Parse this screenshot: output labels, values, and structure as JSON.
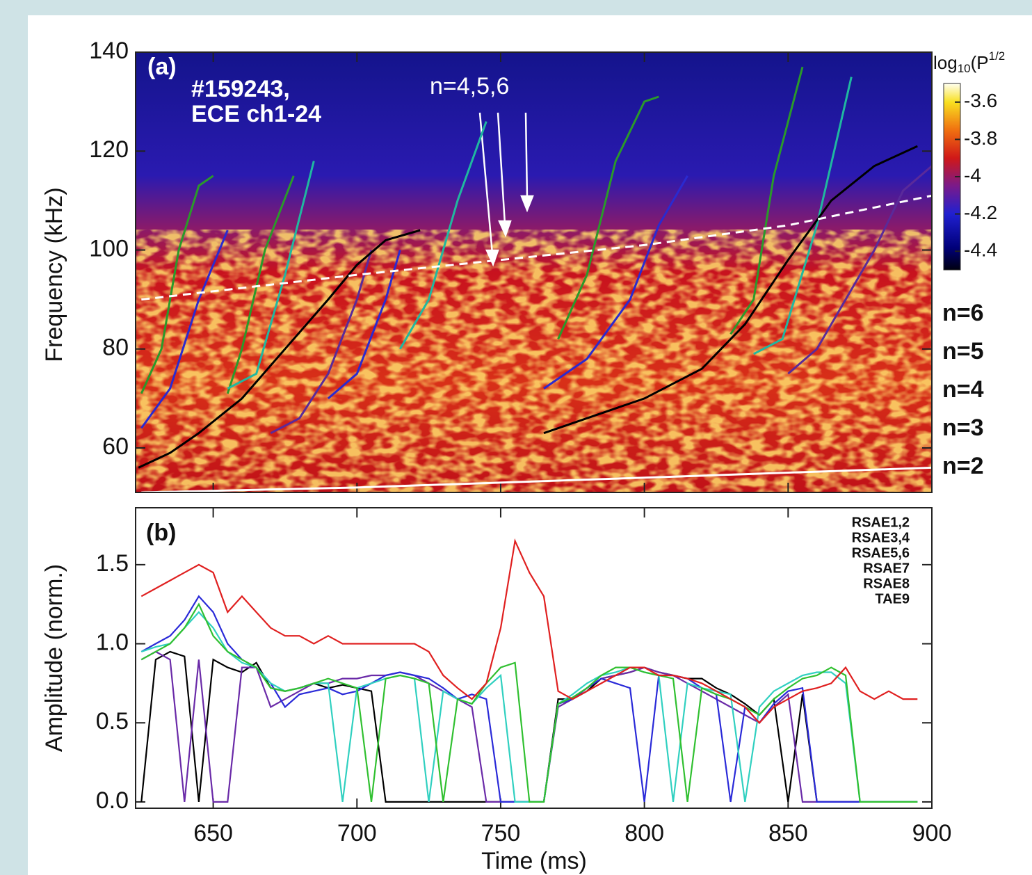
{
  "chart_data": [
    {
      "type": "spectrogram",
      "panel_label": "(a)",
      "annotations": [
        "#159243,",
        "ECE ch1-24",
        "n=4,5,6"
      ],
      "ylabel": "Frequency (kHz)",
      "xlim": [
        623,
        900
      ],
      "xticks": [
        650,
        700,
        750,
        800,
        850,
        900
      ],
      "ylim": [
        51,
        140
      ],
      "yticks": [
        60,
        80,
        100,
        120,
        140
      ],
      "colorbar": {
        "label": {
          "base": "log",
          "sub": "10",
          "mid": "(P",
          "sup": "1/2"
        },
        "lim": [
          -4.5,
          -3.5
        ],
        "ticks": [
          -3.6,
          -3.8,
          -4.0,
          -4.2,
          -4.4
        ]
      },
      "legend": [
        "n=6",
        "n=5",
        "n=4",
        "n=3",
        "n=2"
      ],
      "series": [
        {
          "name": "n=6",
          "color": "#2a9a2a",
          "x": [
            625,
            632,
            638,
            645,
            650,
            null,
            655,
            660,
            668,
            678,
            null,
            770,
            780,
            790,
            800,
            805,
            null,
            830,
            838,
            845,
            855
          ],
          "values": [
            71,
            80,
            100,
            113,
            115,
            null,
            71,
            80,
            100,
            115,
            null,
            82,
            95,
            118,
            130,
            131,
            null,
            83,
            90,
            115,
            137
          ]
        },
        {
          "name": "n=5",
          "color": "#20b8a0",
          "x": [
            655,
            665,
            675,
            685,
            null,
            715,
            725,
            735,
            745,
            null,
            838,
            848,
            860,
            872
          ],
          "values": [
            72,
            75,
            95,
            118,
            null,
            80,
            90,
            110,
            126,
            null,
            79,
            82,
            105,
            135
          ]
        },
        {
          "name": "n=4",
          "color": "#2a2ad0",
          "x": [
            625,
            635,
            645,
            655,
            null,
            690,
            700,
            710,
            715,
            null,
            765,
            780,
            795,
            805,
            815
          ],
          "values": [
            64,
            72,
            90,
            104,
            null,
            70,
            75,
            90,
            100,
            null,
            72,
            78,
            90,
            105,
            115
          ]
        },
        {
          "name": "n=3",
          "color": "#5a2a9a",
          "x": [
            670,
            680,
            690,
            700,
            705,
            null,
            850,
            860,
            870,
            880,
            890,
            900
          ],
          "values": [
            63,
            66,
            75,
            90,
            100,
            null,
            75,
            80,
            90,
            100,
            112,
            117
          ]
        },
        {
          "name": "n=2",
          "color": "#000000",
          "x": [
            624,
            635,
            645,
            660,
            675,
            690,
            700,
            710,
            722,
            null,
            765,
            780,
            800,
            820,
            835,
            850,
            865,
            880,
            895
          ],
          "values": [
            56,
            59,
            63,
            70,
            80,
            90,
            97,
            102,
            104,
            null,
            63,
            66,
            70,
            76,
            85,
            98,
            110,
            117,
            121
          ]
        },
        {
          "color": "#ffffff",
          "dashed": true,
          "x": [
            625,
            700,
            750,
            800,
            850,
            900
          ],
          "values": [
            90,
            95,
            98,
            101,
            105,
            111
          ]
        },
        {
          "color": "#ffffff",
          "x": [
            625,
            700,
            800,
            900
          ],
          "values": [
            51,
            52,
            54,
            56
          ]
        }
      ]
    },
    {
      "type": "line",
      "panel_label": "(b)",
      "ylabel": "Amplitude (norm.)",
      "xlabel": "Time (ms)",
      "xlim": [
        623,
        900
      ],
      "xticks": [
        650,
        700,
        750,
        800,
        850,
        900
      ],
      "ylim": [
        -0.04,
        1.86
      ],
      "yticks": [
        {
          "value": 0,
          "label": "0.0"
        },
        0.5,
        {
          "value": 1,
          "label": "1.0"
        },
        1.5
      ],
      "x": [
        625,
        630,
        635,
        640,
        645,
        650,
        655,
        660,
        665,
        670,
        675,
        680,
        685,
        690,
        695,
        700,
        705,
        710,
        715,
        720,
        725,
        730,
        735,
        740,
        745,
        750,
        755,
        760,
        765,
        770,
        775,
        780,
        785,
        790,
        795,
        800,
        805,
        810,
        815,
        820,
        825,
        830,
        835,
        840,
        845,
        850,
        855,
        860,
        865,
        870,
        875,
        880,
        885,
        890,
        895
      ],
      "series": [
        {
          "name": "RSAE1,2",
          "color": "#000000",
          "values": [
            0,
            0.9,
            0.95,
            0.92,
            0,
            0.9,
            0.85,
            0.82,
            0.88,
            0.72,
            0.7,
            0.72,
            0.75,
            0.72,
            0.74,
            0.72,
            0.7,
            0,
            0,
            0,
            0,
            0,
            0,
            0,
            0,
            0,
            0,
            0,
            0,
            0.65,
            0.65,
            0.7,
            0.78,
            0.8,
            0.82,
            0.85,
            0.82,
            0.8,
            0.78,
            0.78,
            0.72,
            0.68,
            0.62,
            0.55,
            0.65,
            0,
            0.68,
            0,
            0,
            0,
            0,
            0,
            0,
            0,
            0
          ]
        },
        {
          "name": "RSAE3,4",
          "color": "#6a2aa8",
          "values": [
            0.9,
            0.95,
            0.9,
            0,
            0.9,
            0,
            0,
            0.85,
            0.85,
            0.6,
            0.65,
            0.7,
            0.75,
            0.75,
            0.78,
            0.78,
            0.8,
            0.8,
            0.82,
            0.8,
            0.75,
            0.7,
            0.65,
            0.6,
            0,
            0,
            0,
            0,
            0,
            0.6,
            0.65,
            0.72,
            0.78,
            0.8,
            0.82,
            0.85,
            0.82,
            0.8,
            0.75,
            0.7,
            0.65,
            0.6,
            0.55,
            0.5,
            0.6,
            0.68,
            0,
            0,
            0,
            0,
            0,
            0,
            0,
            0,
            0
          ]
        },
        {
          "name": "RSAE5,6",
          "color": "#2a2ad8",
          "values": [
            0.95,
            1.0,
            1.05,
            1.15,
            1.3,
            1.2,
            1.0,
            0.9,
            0.85,
            0.75,
            0.6,
            0.68,
            0.7,
            0.72,
            0.68,
            0.7,
            0.75,
            0.8,
            0.82,
            0.8,
            0.78,
            0.72,
            0.65,
            0.68,
            0.65,
            0,
            0,
            0,
            0,
            0.62,
            0.65,
            0.72,
            0.78,
            0.75,
            0.72,
            0,
            0.8,
            0.8,
            0.78,
            0.72,
            0.68,
            0,
            0.6,
            0.5,
            0.62,
            0.7,
            0.72,
            0,
            0,
            0,
            0,
            0,
            0,
            0,
            0
          ]
        },
        {
          "name": "RSAE7",
          "color": "#30d0c0",
          "values": [
            0.95,
            0.98,
            1.0,
            1.1,
            1.2,
            1.1,
            0.95,
            0.88,
            0.85,
            0.75,
            0.7,
            0.72,
            0.75,
            0.75,
            0,
            0.72,
            0.75,
            0.78,
            0.8,
            0.78,
            0,
            0.7,
            0.65,
            0.62,
            0.72,
            0.8,
            0,
            0,
            0,
            0.62,
            0.68,
            0.75,
            0.8,
            0.82,
            0.85,
            0.82,
            0.8,
            0,
            0.75,
            0.72,
            0.7,
            0.68,
            0,
            0.6,
            0.7,
            0.75,
            0.8,
            0.82,
            0.82,
            0.75,
            0,
            0,
            0,
            0,
            0
          ]
        },
        {
          "name": "RSAE8",
          "color": "#30c030",
          "values": [
            0.9,
            0.95,
            1.0,
            1.1,
            1.25,
            1.05,
            0.95,
            0.9,
            0.85,
            0.72,
            0.7,
            0.72,
            0.75,
            0.78,
            0.75,
            0.72,
            0,
            0.78,
            0.8,
            0.78,
            0.75,
            0,
            0.65,
            0.62,
            0.75,
            0.85,
            0.88,
            0,
            0,
            0.62,
            0.66,
            0.72,
            0.8,
            0.85,
            0.85,
            0.82,
            0.8,
            0.78,
            0,
            0.72,
            0.68,
            0.65,
            0.6,
            0.55,
            0.65,
            0.72,
            0.78,
            0.8,
            0.85,
            0.8,
            0,
            0,
            0,
            0,
            0
          ]
        },
        {
          "name": "TAE9",
          "color": "#e02020",
          "values": [
            1.3,
            1.35,
            1.4,
            1.45,
            1.5,
            1.45,
            1.2,
            1.3,
            1.2,
            1.1,
            1.05,
            1.05,
            1.0,
            1.05,
            1.0,
            1.0,
            1.0,
            1.0,
            1.0,
            1.0,
            0.95,
            0.8,
            0.72,
            0.65,
            0.75,
            1.1,
            1.65,
            1.45,
            1.3,
            0.7,
            0.65,
            0.7,
            0.75,
            0.8,
            0.85,
            0.85,
            0.8,
            0.8,
            0.78,
            0.75,
            0.7,
            0.65,
            0.6,
            0.5,
            0.6,
            0.65,
            0.7,
            0.72,
            0.75,
            0.85,
            0.7,
            0.65,
            0.7,
            0.65,
            0.65
          ]
        }
      ]
    }
  ]
}
